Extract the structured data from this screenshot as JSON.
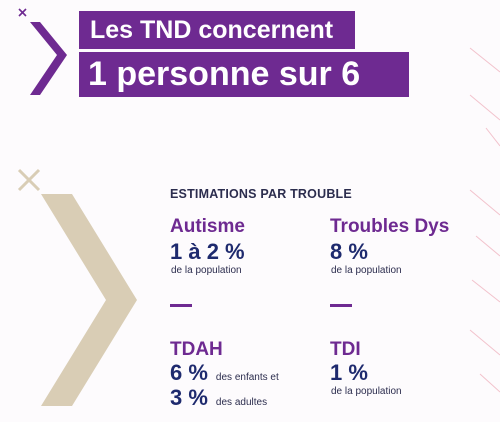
{
  "header": {
    "title_line1": "Les TND concernent",
    "title_line2": "1 personne sur 6"
  },
  "section_heading": "ESTIMATIONS PAR TROUBLE",
  "troubles": {
    "autisme": {
      "name": "Autisme",
      "value": "1 à 2 %",
      "note": "de la population"
    },
    "dys": {
      "name": "Troubles Dys",
      "value": "8 %",
      "note": "de la population"
    },
    "tdah": {
      "name": "TDAH",
      "value_children": "6 %",
      "note_children": "des enfants et",
      "value_adults": "3 %",
      "note_adults": "des adultes"
    },
    "tdi": {
      "name": "TDI",
      "value": "1 %",
      "note": "de la population"
    }
  },
  "colors": {
    "purple": "#6e2a91",
    "navy": "#1e2a6e",
    "beige": "#d9cdb5",
    "pink_lines": "#f2c2cc"
  },
  "icons": [
    "close-x-icon",
    "chevron-right-icon",
    "beige-chevron-icon",
    "beige-x-icon"
  ]
}
